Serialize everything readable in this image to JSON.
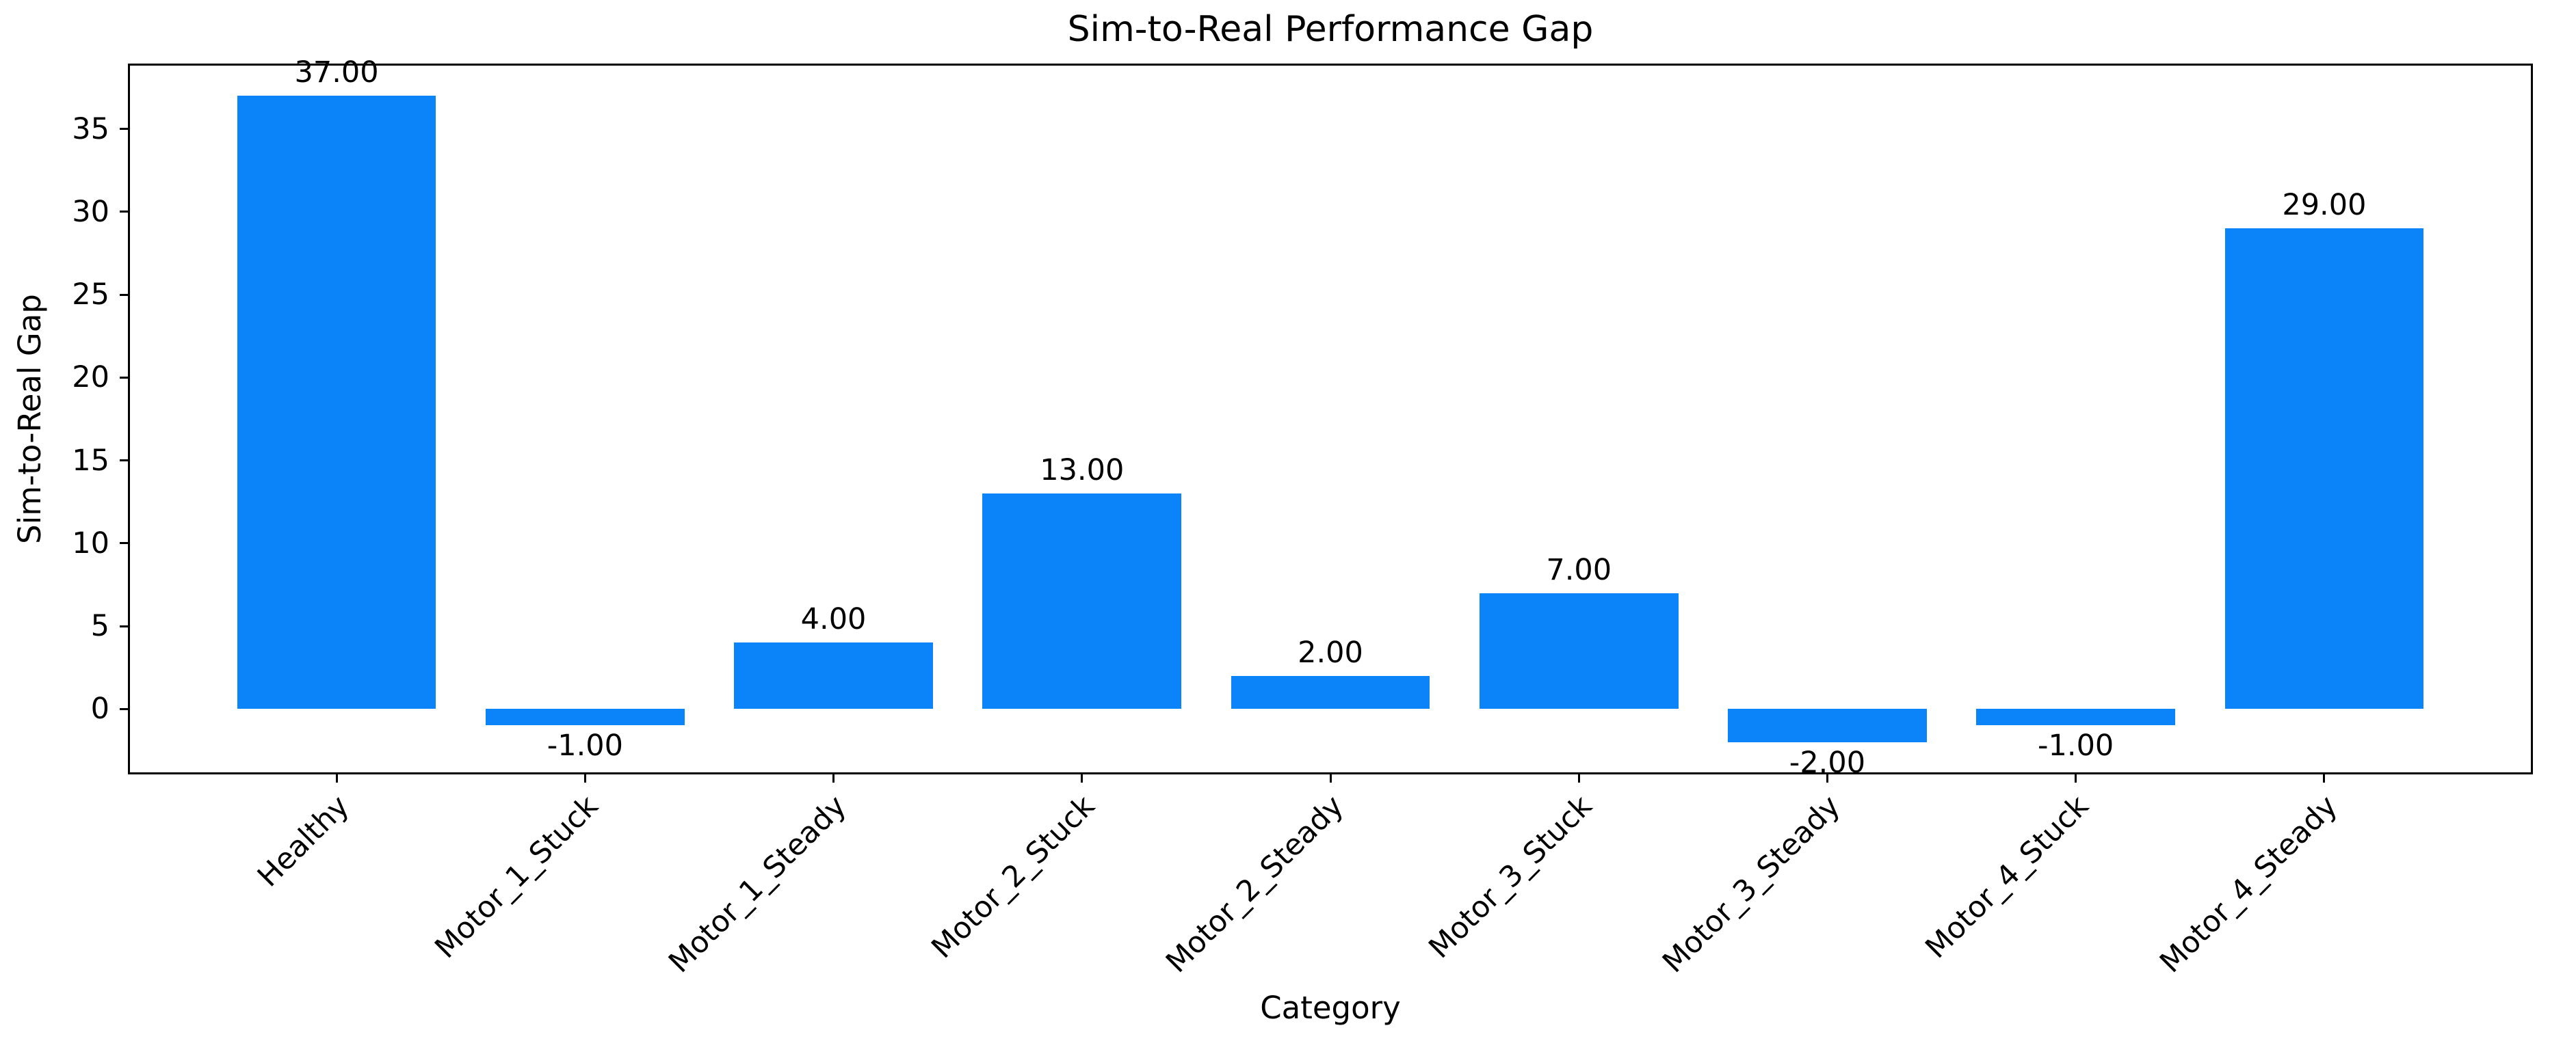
{
  "chart_data": {
    "type": "bar",
    "title": "Sim-to-Real Performance Gap",
    "xlabel": "Category",
    "ylabel": "Sim-to-Real Gap",
    "categories": [
      "Healthy",
      "Motor_1_Stuck",
      "Motor_1_Steady",
      "Motor_2_Stuck",
      "Motor_2_Steady",
      "Motor_3_Stuck",
      "Motor_3_Steady",
      "Motor_4_Stuck",
      "Motor_4_Steady"
    ],
    "values": [
      37,
      -1,
      4,
      13,
      2,
      7,
      -2,
      -1,
      29
    ],
    "bar_value_labels": [
      "37.00",
      "-1.00",
      "4.00",
      "13.00",
      "2.00",
      "7.00",
      "-2.00",
      "-1.00",
      "29.00"
    ],
    "yticks": [
      0,
      5,
      10,
      15,
      20,
      25,
      30,
      35
    ],
    "ylim": [
      -3.95,
      38.95
    ],
    "xlim": [
      -0.84,
      8.84
    ],
    "bar_width": 0.8,
    "bar_color": "#0a84f8",
    "axis_color": "#000000",
    "background_color": "#ffffff",
    "grid": false,
    "legend": null,
    "x_tick_label_rotation_deg": 45
  }
}
